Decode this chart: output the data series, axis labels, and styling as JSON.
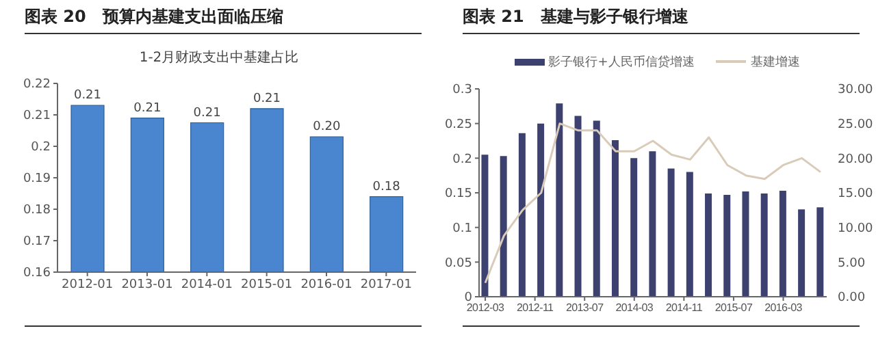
{
  "chart_data": [
    {
      "type": "bar",
      "title": "图表 20　预算内基建支出面临压缩",
      "subtitle": "1-2月财政支出中基建占比",
      "categories": [
        "2012-01",
        "2013-01",
        "2014-01",
        "2015-01",
        "2016-01",
        "2017-01"
      ],
      "values": [
        0.213,
        0.209,
        0.2075,
        0.212,
        0.203,
        0.184
      ],
      "color": "#4a86cf",
      "value_labels": [
        "0.21",
        "0.21",
        "0.21",
        "0.21",
        "0.20",
        "0.18"
      ],
      "ylim": [
        0.16,
        0.22
      ],
      "yticks": [
        0.16,
        0.17,
        0.18,
        0.19,
        0.2,
        0.21,
        0.22
      ]
    },
    {
      "type": "bar",
      "title": "图表 21　基建与影子银行增速",
      "legend": "top",
      "x": [
        "2012-03",
        "2012-06",
        "2012-09",
        "2012-12",
        "2013-03",
        "2013-06",
        "2013-09",
        "2013-12",
        "2014-03",
        "2014-06",
        "2014-09",
        "2014-12",
        "2015-03",
        "2015-06",
        "2015-09",
        "2015-12",
        "2016-03",
        "2016-06",
        "2016-09"
      ],
      "xlim": [
        "2012-02",
        "2016-10"
      ],
      "xticks": [
        "2012-03",
        "2012-11",
        "2013-07",
        "2014-03",
        "2014-11",
        "2015-07",
        "2016-03"
      ],
      "ylim": [
        0,
        0.3
      ],
      "yticks": [
        0,
        0.05,
        0.1,
        0.15,
        0.2,
        0.25,
        0.3
      ],
      "y2lim": [
        0,
        30
      ],
      "y2ticks": [
        {
          "value": 0,
          "label": "0.00"
        },
        {
          "value": 5,
          "label": "5.00"
        },
        {
          "value": 10,
          "label": "10.00"
        },
        {
          "value": 15,
          "label": "15.00"
        },
        {
          "value": 20,
          "label": "20.00"
        },
        {
          "value": 25,
          "label": "25.00"
        },
        {
          "value": 30,
          "label": "30.00"
        }
      ],
      "series": [
        {
          "name": "影子银行+人民币信贷增速",
          "color": "#3d4170",
          "values": [
            0.205,
            0.203,
            0.236,
            0.25,
            0.279,
            0.261,
            0.254,
            0.226,
            0.2,
            0.21,
            0.185,
            0.18,
            0.149,
            0.147,
            0.152,
            0.149,
            0.153,
            0.126,
            0.129
          ]
        },
        {
          "name": "基建增速",
          "type": "line",
          "axis": "y2",
          "color": "#d9cbb8",
          "values": [
            2,
            8.8,
            12.5,
            15,
            25,
            24,
            24,
            21,
            21,
            22.5,
            20.5,
            19.8,
            23,
            19,
            17.5,
            17,
            19,
            20,
            18
          ]
        }
      ]
    }
  ]
}
